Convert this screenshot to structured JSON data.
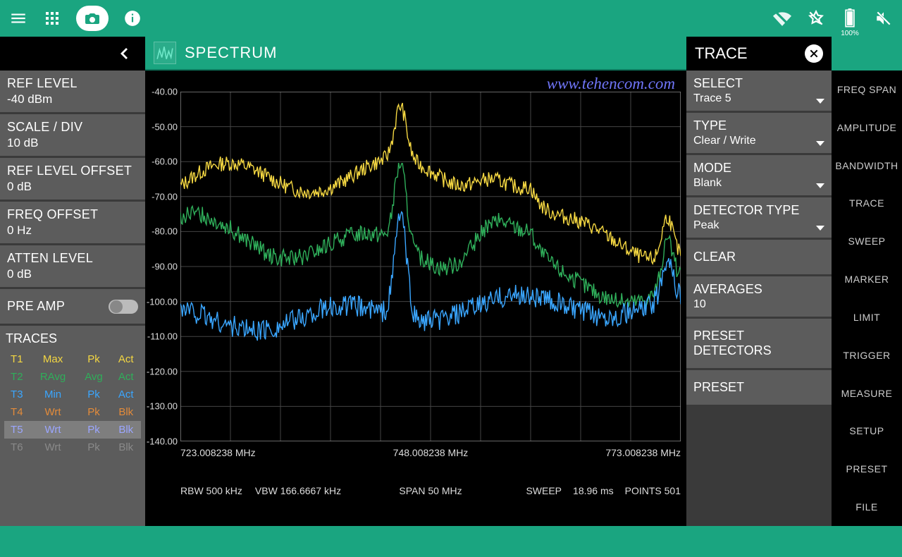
{
  "title": "SPECTRUM",
  "watermark": "www.tehencom.com",
  "battery_pct": "100%",
  "left_params": {
    "ref_level": {
      "name": "REF LEVEL",
      "val": "-40 dBm"
    },
    "scale_div": {
      "name": "SCALE / DIV",
      "val": "10 dB"
    },
    "ref_level_offset": {
      "name": "REF LEVEL OFFSET",
      "val": "0 dB"
    },
    "freq_offset": {
      "name": "FREQ OFFSET",
      "val": "0 Hz"
    },
    "atten_level": {
      "name": "ATTEN LEVEL",
      "val": "0 dB"
    },
    "preamp": {
      "name": "PRE AMP",
      "val": "off"
    }
  },
  "traces_title": "TRACES",
  "traces": [
    {
      "id": "T1",
      "c1": "Max",
      "c2": "Pk",
      "c3": "Act",
      "color": "#f4d742",
      "sel": false
    },
    {
      "id": "T2",
      "c1": "RAvg",
      "c2": "Avg",
      "c3": "Act",
      "color": "#2fae5a",
      "sel": false
    },
    {
      "id": "T3",
      "c1": "Min",
      "c2": "Pk",
      "c3": "Act",
      "color": "#3aa6ff",
      "sel": false
    },
    {
      "id": "T4",
      "c1": "Wrt",
      "c2": "Pk",
      "c3": "Blk",
      "color": "#e38b3a",
      "sel": false
    },
    {
      "id": "T5",
      "c1": "Wrt",
      "c2": "Pk",
      "c3": "Blk",
      "color": "#9ba6ff",
      "sel": true
    },
    {
      "id": "T6",
      "c1": "Wrt",
      "c2": "Pk",
      "c3": "Blk",
      "color": "#8a8a8a",
      "sel": false
    }
  ],
  "chart": {
    "ylim": [
      -140,
      -40
    ],
    "ytick_step": 10,
    "yticks": [
      "-40.00",
      "-50.00",
      "-60.00",
      "-70.00",
      "-80.00",
      "-90.00",
      "-100.00",
      "-110.00",
      "-120.00",
      "-130.00",
      "-140.00"
    ],
    "xgrid": 10,
    "xticks": [
      {
        "pos": 0.0,
        "label": "723.008238 MHz"
      },
      {
        "pos": 0.5,
        "label": "748.008238 MHz"
      },
      {
        "pos": 1.0,
        "label": "773.008238 MHz"
      }
    ],
    "grid_color": "#444",
    "bg": "#000",
    "series": [
      {
        "name": "yellow",
        "color": "#f4d742",
        "base": -67,
        "peak": -52,
        "amp": 5,
        "noise": 2.2
      },
      {
        "name": "green",
        "color": "#2fae5a",
        "base": -83,
        "peak": -60,
        "amp": 5,
        "noise": 2.5
      },
      {
        "name": "blue",
        "color": "#3aa6ff",
        "base": -103,
        "peak": -73,
        "amp": 3,
        "noise": 3.2
      }
    ]
  },
  "footer": {
    "rbw": "RBW 500 kHz",
    "vbw": "VBW 166.6667 kHz",
    "span": "SPAN 50 MHz",
    "sweep_lbl": "SWEEP",
    "sweep_val": "18.96 ms",
    "points": "POINTS 501"
  },
  "right_title": "TRACE",
  "right_cards": {
    "select": {
      "name": "SELECT",
      "val": "Trace 5",
      "chev": true
    },
    "type": {
      "name": "TYPE",
      "val": "Clear / Write",
      "chev": true
    },
    "mode": {
      "name": "MODE",
      "val": "Blank",
      "chev": true
    },
    "detector": {
      "name": "DETECTOR TYPE",
      "val": "Peak",
      "chev": true
    },
    "clear": {
      "name": "CLEAR"
    },
    "averages": {
      "name": "AVERAGES",
      "val": "10"
    },
    "presetdet": {
      "name": "PRESET DETECTORS"
    },
    "preset": {
      "name": "PRESET"
    }
  },
  "tabs": [
    "FREQ SPAN",
    "AMPLITUDE",
    "BANDWIDTH",
    "TRACE",
    "SWEEP",
    "MARKER",
    "LIMIT",
    "TRIGGER",
    "MEASURE",
    "SETUP",
    "PRESET",
    "FILE"
  ]
}
